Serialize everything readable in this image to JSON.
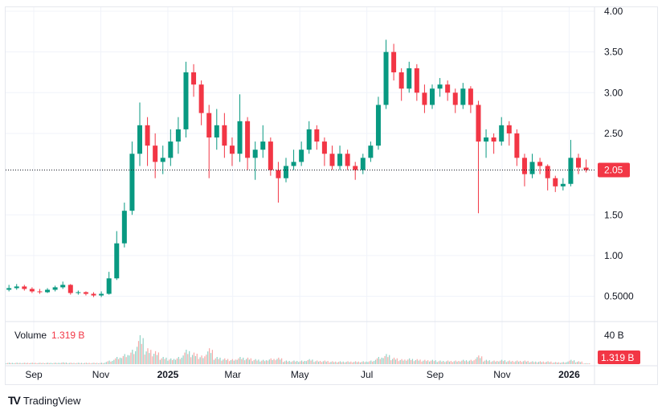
{
  "chart_data": {
    "type": "candlestick",
    "price_axis": {
      "ticks": [
        "4.00",
        "3.50",
        "3.00",
        "2.50",
        "1.50",
        "1.00",
        "0.5000"
      ],
      "tick_values": [
        4,
        3.5,
        3,
        2.5,
        1.5,
        1,
        0.5
      ],
      "range": [
        0.3,
        4.05
      ],
      "scale": "linear"
    },
    "time_axis": {
      "ticks": [
        {
          "label": "Sep",
          "date": "2024-09-01"
        },
        {
          "label": "Nov",
          "date": "2024-11-01"
        },
        {
          "label": "2025",
          "date": "2025-01-01",
          "bold": true
        },
        {
          "label": "Mar",
          "date": "2025-03-01"
        },
        {
          "label": "May",
          "date": "2025-05-01"
        },
        {
          "label": "Jul",
          "date": "2025-07-01"
        },
        {
          "label": "Sep",
          "date": "2025-09-01"
        },
        {
          "label": "Nov",
          "date": "2025-11-01"
        },
        {
          "label": "2026",
          "date": "2026-01-01",
          "bold": true
        }
      ]
    },
    "last_price": "2.05",
    "last_price_value": 2.05,
    "volume": {
      "label": "Volume",
      "last": "1.319 B",
      "axis_tick": "40 B",
      "axis_tick_value": 40
    },
    "colors": {
      "up": "#089981",
      "down": "#f23645",
      "vol_up": "#92d2c6",
      "vol_down": "#f7a9a7"
    },
    "grid": true,
    "candles": [
      [
        "2024-08-08",
        0.58,
        0.64,
        0.56,
        0.6,
        2
      ],
      [
        "2024-08-15",
        0.6,
        0.65,
        0.58,
        0.62,
        2
      ],
      [
        "2024-08-22",
        0.62,
        0.64,
        0.57,
        0.59,
        2
      ],
      [
        "2024-08-29",
        0.59,
        0.61,
        0.54,
        0.56,
        2
      ],
      [
        "2024-09-05",
        0.56,
        0.59,
        0.53,
        0.55,
        2
      ],
      [
        "2024-09-12",
        0.55,
        0.6,
        0.54,
        0.58,
        2
      ],
      [
        "2024-09-19",
        0.58,
        0.63,
        0.56,
        0.61,
        2
      ],
      [
        "2024-09-26",
        0.61,
        0.68,
        0.59,
        0.64,
        2.5
      ],
      [
        "2024-10-03",
        0.64,
        0.65,
        0.52,
        0.54,
        2
      ],
      [
        "2024-10-10",
        0.54,
        0.57,
        0.52,
        0.55,
        2
      ],
      [
        "2024-10-17",
        0.55,
        0.56,
        0.51,
        0.53,
        2
      ],
      [
        "2024-10-24",
        0.53,
        0.55,
        0.49,
        0.51,
        2
      ],
      [
        "2024-10-31",
        0.51,
        0.56,
        0.49,
        0.53,
        2
      ],
      [
        "2024-11-07",
        0.53,
        0.8,
        0.52,
        0.72,
        5
      ],
      [
        "2024-11-14",
        0.72,
        1.3,
        0.7,
        1.15,
        10
      ],
      [
        "2024-11-21",
        1.15,
        1.65,
        1.1,
        1.55,
        14
      ],
      [
        "2024-11-28",
        1.55,
        2.4,
        1.5,
        2.25,
        20
      ],
      [
        "2024-12-05",
        2.25,
        2.88,
        2.1,
        2.6,
        40
      ],
      [
        "2024-12-12",
        2.6,
        2.7,
        2.1,
        2.35,
        22
      ],
      [
        "2024-12-19",
        2.35,
        2.5,
        1.95,
        2.15,
        18
      ],
      [
        "2024-12-26",
        2.15,
        2.35,
        2.0,
        2.2,
        10
      ],
      [
        "2025-01-02",
        2.2,
        2.55,
        2.1,
        2.4,
        8
      ],
      [
        "2025-01-09",
        2.4,
        2.7,
        2.25,
        2.55,
        10
      ],
      [
        "2025-01-16",
        2.55,
        3.38,
        2.45,
        3.25,
        20
      ],
      [
        "2025-01-23",
        3.25,
        3.35,
        2.95,
        3.1,
        16
      ],
      [
        "2025-01-30",
        3.1,
        3.15,
        2.6,
        2.75,
        12
      ],
      [
        "2025-02-06",
        2.75,
        2.85,
        1.95,
        2.45,
        22
      ],
      [
        "2025-02-13",
        2.45,
        2.8,
        2.3,
        2.6,
        10
      ],
      [
        "2025-02-20",
        2.6,
        2.75,
        2.2,
        2.35,
        8
      ],
      [
        "2025-02-27",
        2.35,
        2.45,
        2.1,
        2.25,
        7
      ],
      [
        "2025-03-06",
        2.25,
        2.98,
        2.15,
        2.65,
        10
      ],
      [
        "2025-03-13",
        2.65,
        2.7,
        2.05,
        2.2,
        9
      ],
      [
        "2025-03-20",
        2.2,
        2.4,
        1.93,
        2.3,
        7
      ],
      [
        "2025-03-27",
        2.3,
        2.6,
        2.2,
        2.4,
        6
      ],
      [
        "2025-04-03",
        2.4,
        2.45,
        1.98,
        2.05,
        8
      ],
      [
        "2025-04-10",
        2.05,
        2.15,
        1.65,
        1.95,
        9
      ],
      [
        "2025-04-17",
        1.95,
        2.2,
        1.9,
        2.1,
        5
      ],
      [
        "2025-04-24",
        2.1,
        2.3,
        2.05,
        2.15,
        5
      ],
      [
        "2025-05-01",
        2.15,
        2.4,
        2.1,
        2.3,
        5
      ],
      [
        "2025-05-08",
        2.3,
        2.65,
        2.25,
        2.55,
        7
      ],
      [
        "2025-05-15",
        2.55,
        2.6,
        2.3,
        2.4,
        5
      ],
      [
        "2025-05-22",
        2.4,
        2.45,
        2.1,
        2.25,
        5
      ],
      [
        "2025-05-29",
        2.25,
        2.35,
        2.05,
        2.1,
        4
      ],
      [
        "2025-06-05",
        2.1,
        2.35,
        2.05,
        2.25,
        4
      ],
      [
        "2025-06-12",
        2.25,
        2.3,
        2.05,
        2.1,
        4
      ],
      [
        "2025-06-19",
        2.1,
        2.15,
        1.93,
        2.05,
        4
      ],
      [
        "2025-06-26",
        2.05,
        2.25,
        2.0,
        2.2,
        4
      ],
      [
        "2025-07-03",
        2.2,
        2.4,
        2.15,
        2.35,
        5
      ],
      [
        "2025-07-10",
        2.35,
        2.95,
        2.3,
        2.85,
        10
      ],
      [
        "2025-07-17",
        2.85,
        3.65,
        2.8,
        3.5,
        14
      ],
      [
        "2025-07-24",
        3.5,
        3.6,
        3.15,
        3.25,
        9
      ],
      [
        "2025-07-31",
        3.25,
        3.3,
        2.9,
        3.05,
        7
      ],
      [
        "2025-08-07",
        3.05,
        3.38,
        3.0,
        3.3,
        8
      ],
      [
        "2025-08-14",
        3.3,
        3.35,
        2.9,
        3.0,
        7
      ],
      [
        "2025-08-21",
        3.0,
        3.1,
        2.75,
        2.85,
        6
      ],
      [
        "2025-08-28",
        2.85,
        3.1,
        2.8,
        3.05,
        6
      ],
      [
        "2025-09-04",
        3.05,
        3.18,
        2.95,
        3.1,
        5
      ],
      [
        "2025-09-11",
        3.1,
        3.15,
        2.9,
        3.0,
        5
      ],
      [
        "2025-09-18",
        3.0,
        3.05,
        2.75,
        2.85,
        5
      ],
      [
        "2025-09-25",
        2.85,
        3.12,
        2.8,
        3.05,
        6
      ],
      [
        "2025-10-02",
        3.05,
        3.08,
        2.75,
        2.85,
        6
      ],
      [
        "2025-10-09",
        2.85,
        2.9,
        1.52,
        2.4,
        12
      ],
      [
        "2025-10-16",
        2.4,
        2.55,
        2.2,
        2.45,
        6
      ],
      [
        "2025-10-23",
        2.45,
        2.5,
        2.25,
        2.4,
        5
      ],
      [
        "2025-10-30",
        2.4,
        2.7,
        2.35,
        2.6,
        6
      ],
      [
        "2025-11-06",
        2.6,
        2.65,
        2.35,
        2.5,
        5
      ],
      [
        "2025-11-13",
        2.5,
        2.55,
        2.1,
        2.2,
        5
      ],
      [
        "2025-11-20",
        2.2,
        2.25,
        1.85,
        2.0,
        5
      ],
      [
        "2025-11-27",
        2.0,
        2.25,
        1.95,
        2.15,
        4
      ],
      [
        "2025-12-04",
        2.15,
        2.2,
        2.0,
        2.1,
        4
      ],
      [
        "2025-12-11",
        2.1,
        2.12,
        1.8,
        1.95,
        4
      ],
      [
        "2025-12-18",
        1.95,
        1.98,
        1.78,
        1.85,
        3
      ],
      [
        "2025-12-25",
        1.85,
        1.95,
        1.8,
        1.88,
        3
      ],
      [
        "2026-01-01",
        1.88,
        2.42,
        1.85,
        2.2,
        6
      ],
      [
        "2026-01-08",
        2.2,
        2.25,
        2.0,
        2.08,
        4
      ],
      [
        "2026-01-15",
        2.08,
        2.18,
        2.02,
        2.05,
        1.319
      ]
    ]
  }
}
